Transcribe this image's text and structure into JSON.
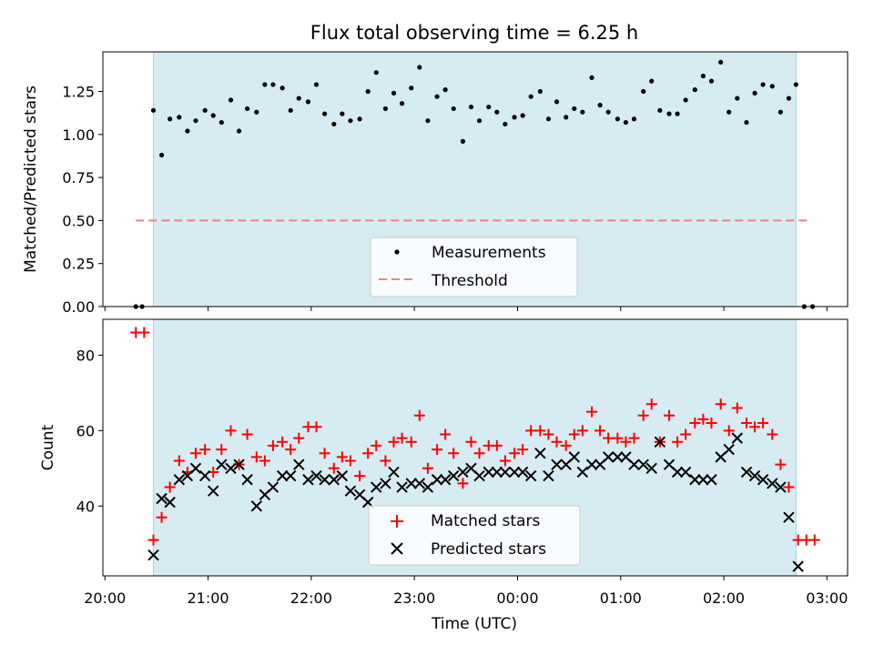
{
  "title": "Flux total observing time = 6.25 h",
  "colors": {
    "shade": "#add8e6",
    "measurement": "#000000",
    "threshold": "#f08080",
    "matched": "#ff0000",
    "predicted": "#000000"
  },
  "chart_data": [
    {
      "type": "scatter",
      "ylabel": "Matched/Predicted stars",
      "xlim_hours": [
        19.98,
        27.2
      ],
      "ylim": [
        0,
        1.48
      ],
      "yticks": [
        0.0,
        0.25,
        0.5,
        0.75,
        1.0,
        1.25
      ],
      "ytick_labels": [
        "0.00",
        "0.25",
        "0.50",
        "0.75",
        "1.00",
        "1.25"
      ],
      "xticks_hours": [
        20,
        21,
        22,
        23,
        24,
        25,
        26,
        27
      ],
      "shade_span_hours": [
        20.47,
        26.7
      ],
      "legend": {
        "position": "lower center",
        "items": [
          "Measurements",
          "Threshold"
        ]
      },
      "threshold": {
        "name": "Threshold",
        "y": 0.5,
        "x_hours": [
          20.3,
          26.85
        ]
      },
      "measurements": {
        "name": "Measurements",
        "x_hours": [
          20.3,
          20.36,
          20.47,
          20.55,
          20.63,
          20.72,
          20.8,
          20.88,
          20.97,
          21.05,
          21.13,
          21.22,
          21.3,
          21.38,
          21.47,
          21.55,
          21.63,
          21.72,
          21.8,
          21.88,
          21.97,
          22.05,
          22.13,
          22.22,
          22.3,
          22.38,
          22.47,
          22.55,
          22.63,
          22.72,
          22.8,
          22.88,
          22.97,
          23.05,
          23.13,
          23.22,
          23.3,
          23.38,
          23.47,
          23.55,
          23.63,
          23.72,
          23.8,
          23.88,
          23.97,
          24.05,
          24.13,
          24.22,
          24.3,
          24.38,
          24.47,
          24.55,
          24.63,
          24.72,
          24.8,
          24.88,
          24.97,
          25.05,
          25.13,
          25.22,
          25.3,
          25.38,
          25.47,
          25.55,
          25.63,
          25.72,
          25.8,
          25.88,
          25.97,
          26.05,
          26.13,
          26.22,
          26.3,
          26.38,
          26.47,
          26.55,
          26.63,
          26.7,
          26.78,
          26.86
        ],
        "y": [
          0,
          0,
          1.14,
          0.88,
          1.09,
          1.1,
          1.02,
          1.08,
          1.14,
          1.11,
          1.07,
          1.2,
          1.02,
          1.15,
          1.13,
          1.29,
          1.29,
          1.27,
          1.14,
          1.21,
          1.19,
          1.29,
          1.12,
          1.06,
          1.12,
          1.08,
          1.09,
          1.25,
          1.36,
          1.15,
          1.24,
          1.18,
          1.27,
          1.39,
          1.08,
          1.22,
          1.26,
          1.15,
          0.96,
          1.16,
          1.08,
          1.16,
          1.13,
          1.06,
          1.1,
          1.11,
          1.22,
          1.25,
          1.09,
          1.19,
          1.1,
          1.15,
          1.13,
          1.33,
          1.17,
          1.13,
          1.09,
          1.07,
          1.09,
          1.25,
          1.31,
          1.14,
          1.12,
          1.12,
          1.2,
          1.26,
          1.34,
          1.31,
          1.42,
          1.13,
          1.21,
          1.07,
          1.24,
          1.29,
          1.28,
          1.13,
          1.21,
          1.29,
          0,
          0
        ]
      }
    },
    {
      "type": "scatter",
      "xlabel": "Time (UTC)",
      "ylabel": "Count",
      "xlim_hours": [
        19.98,
        27.2
      ],
      "ylim": [
        21.5,
        89.5
      ],
      "yticks": [
        40,
        60,
        80
      ],
      "ytick_labels": [
        "40",
        "60",
        "80"
      ],
      "xticks_hours": [
        20,
        21,
        22,
        23,
        24,
        25,
        26,
        27
      ],
      "xtick_labels": [
        "20:00",
        "21:00",
        "22:00",
        "23:00",
        "00:00",
        "01:00",
        "02:00",
        "03:00"
      ],
      "shade_span_hours": [
        20.47,
        26.7
      ],
      "legend": {
        "position": "lower center",
        "items": [
          "Matched stars",
          "Predicted stars"
        ]
      },
      "matched": {
        "name": "Matched stars",
        "x_hours": [
          20.3,
          20.38,
          20.47,
          20.55,
          20.63,
          20.72,
          20.8,
          20.88,
          20.97,
          21.05,
          21.13,
          21.22,
          21.3,
          21.38,
          21.47,
          21.55,
          21.63,
          21.72,
          21.8,
          21.88,
          21.97,
          22.05,
          22.13,
          22.22,
          22.3,
          22.38,
          22.47,
          22.55,
          22.63,
          22.72,
          22.8,
          22.88,
          22.97,
          23.05,
          23.13,
          23.22,
          23.3,
          23.38,
          23.47,
          23.55,
          23.63,
          23.72,
          23.8,
          23.88,
          23.97,
          24.05,
          24.13,
          24.22,
          24.3,
          24.38,
          24.47,
          24.55,
          24.63,
          24.72,
          24.8,
          24.88,
          24.97,
          25.05,
          25.13,
          25.22,
          25.3,
          25.38,
          25.47,
          25.55,
          25.63,
          25.72,
          25.8,
          25.88,
          25.97,
          26.05,
          26.13,
          26.22,
          26.3,
          26.38,
          26.47,
          26.55,
          26.63,
          26.72,
          26.8,
          26.88
        ],
        "y": [
          86,
          86,
          31,
          37,
          45,
          52,
          49,
          54,
          55,
          49,
          55,
          60,
          51,
          59,
          53,
          52,
          56,
          57,
          55,
          58,
          61,
          61,
          54,
          50,
          53,
          52,
          48,
          54,
          56,
          52,
          57,
          58,
          57,
          64,
          50,
          55,
          59,
          54,
          46,
          57,
          54,
          56,
          56,
          52,
          54,
          55,
          60,
          60,
          59,
          57,
          56,
          59,
          60,
          65,
          60,
          58,
          58,
          57,
          58,
          64,
          67,
          57,
          64,
          57,
          59,
          62,
          63,
          62,
          67,
          60,
          66,
          62,
          61,
          62,
          59,
          51,
          45,
          31,
          31,
          31
        ]
      },
      "predicted": {
        "name": "Predicted stars",
        "x_hours": [
          20.47,
          20.55,
          20.63,
          20.72,
          20.8,
          20.88,
          20.97,
          21.05,
          21.13,
          21.22,
          21.3,
          21.38,
          21.47,
          21.55,
          21.63,
          21.72,
          21.8,
          21.88,
          21.97,
          22.05,
          22.13,
          22.22,
          22.3,
          22.38,
          22.47,
          22.55,
          22.63,
          22.72,
          22.8,
          22.88,
          22.97,
          23.05,
          23.13,
          23.22,
          23.3,
          23.38,
          23.47,
          23.55,
          23.63,
          23.72,
          23.8,
          23.88,
          23.97,
          24.05,
          24.13,
          24.22,
          24.3,
          24.38,
          24.47,
          24.55,
          24.63,
          24.72,
          24.8,
          24.88,
          24.97,
          25.05,
          25.13,
          25.22,
          25.3,
          25.38,
          25.47,
          25.55,
          25.63,
          25.72,
          25.8,
          25.88,
          25.97,
          26.05,
          26.13,
          26.22,
          26.3,
          26.38,
          26.47,
          26.55,
          26.63,
          26.72
        ],
        "y": [
          27,
          42,
          41,
          47,
          48,
          50,
          48,
          44,
          51,
          50,
          51,
          47,
          40,
          43,
          45,
          48,
          48,
          51,
          47,
          48,
          47,
          47,
          48,
          44,
          43,
          41,
          45,
          46,
          49,
          45,
          46,
          46,
          45,
          47,
          47,
          48,
          49,
          50,
          48,
          49,
          49,
          49,
          49,
          49,
          48,
          54,
          48,
          51,
          51,
          53,
          49,
          51,
          51,
          53,
          53,
          53,
          51,
          51,
          50,
          57,
          51,
          49,
          49,
          47,
          47,
          47,
          53,
          55,
          58,
          49,
          48,
          47,
          46,
          45,
          37,
          24
        ]
      }
    }
  ]
}
